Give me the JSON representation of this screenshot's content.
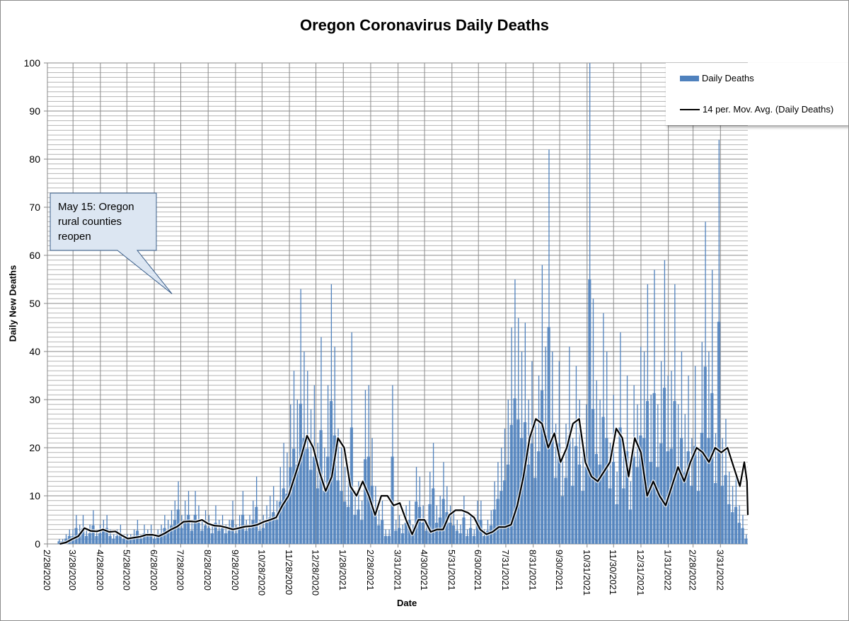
{
  "chart_data": {
    "type": "bar",
    "title": "Oregon Coronavirus Daily Deaths",
    "xlabel": "Date",
    "ylabel": "Daily New Deaths",
    "ylim": [
      0,
      100
    ],
    "yticks": [
      0,
      10,
      20,
      30,
      40,
      50,
      60,
      70,
      80,
      90,
      100
    ],
    "x_start_date": "2/28/2020",
    "x_range_days": [
      0,
      793
    ],
    "xticks": [
      {
        "day": 0,
        "label": "2/28/2020"
      },
      {
        "day": 29,
        "label": "3/28/2020"
      },
      {
        "day": 60,
        "label": "4/28/2020"
      },
      {
        "day": 90,
        "label": "5/28/2020"
      },
      {
        "day": 121,
        "label": "6/28/2020"
      },
      {
        "day": 151,
        "label": "7/28/2020"
      },
      {
        "day": 182,
        "label": "8/28/2020"
      },
      {
        "day": 213,
        "label": "9/28/2020"
      },
      {
        "day": 243,
        "label": "10/28/2020"
      },
      {
        "day": 274,
        "label": "11/28/2020"
      },
      {
        "day": 304,
        "label": "12/28/2020"
      },
      {
        "day": 335,
        "label": "1/28/2021"
      },
      {
        "day": 366,
        "label": "2/28/2021"
      },
      {
        "day": 397,
        "label": "3/31/2021"
      },
      {
        "day": 427,
        "label": "4/30/2021"
      },
      {
        "day": 458,
        "label": "5/31/2021"
      },
      {
        "day": 488,
        "label": "6/30/2021"
      },
      {
        "day": 519,
        "label": "7/31/2021"
      },
      {
        "day": 550,
        "label": "8/31/2021"
      },
      {
        "day": 580,
        "label": "9/30/2021"
      },
      {
        "day": 611,
        "label": "10/31/2021"
      },
      {
        "day": 641,
        "label": "11/30/2021"
      },
      {
        "day": 672,
        "label": "12/31/2021"
      },
      {
        "day": 703,
        "label": "1/31/2022"
      },
      {
        "day": 731,
        "label": "2/28/2022"
      },
      {
        "day": 762,
        "label": "3/31/2022"
      }
    ],
    "grid": {
      "horizontal_minor_every": 1,
      "horizontal_major_every": 10,
      "vertical": "at-ticks"
    },
    "legend_placement": "top-right",
    "bar_bin_days": 3.85,
    "series": [
      {
        "name": "Daily Deaths",
        "kind": "bar",
        "color": "#4f81bd",
        "values": [
          0,
          0,
          0,
          1,
          1,
          2,
          3,
          3,
          6,
          4,
          6,
          3,
          4,
          7,
          3,
          4,
          5,
          6,
          3,
          2,
          3,
          4,
          2,
          2,
          2,
          3,
          5,
          2,
          4,
          3,
          4,
          2,
          3,
          4,
          6,
          5,
          7,
          9,
          13,
          6,
          9,
          11,
          5,
          11,
          8,
          5,
          7,
          6,
          4,
          8,
          5,
          6,
          4,
          5,
          9,
          4,
          6,
          11,
          5,
          6,
          9,
          14,
          5,
          6,
          8,
          10,
          12,
          9,
          16,
          21,
          19,
          29,
          36,
          30,
          53,
          40,
          36,
          28,
          33,
          21,
          43,
          20,
          33,
          54,
          41,
          24,
          20,
          16,
          14,
          44,
          11,
          13,
          9,
          32,
          33,
          22,
          12,
          7,
          9,
          3,
          3,
          33,
          5,
          6,
          4,
          8,
          9,
          4,
          16,
          14,
          8,
          5,
          15,
          21,
          8,
          10,
          17,
          12,
          8,
          7,
          5,
          4,
          10,
          3,
          6,
          3,
          9,
          9,
          3,
          5,
          7,
          13,
          17,
          20,
          24,
          30,
          45,
          55,
          47,
          40,
          46,
          30,
          38,
          25,
          35,
          58,
          41,
          82,
          40,
          25,
          38,
          18,
          25,
          41,
          22,
          37,
          30,
          20,
          29,
          100,
          51,
          34,
          30,
          48,
          40,
          21,
          31,
          15,
          44,
          21,
          35,
          13,
          33,
          29,
          41,
          40,
          54,
          31,
          57,
          29,
          38,
          59,
          35,
          36,
          54,
          29,
          40,
          27,
          35,
          22,
          37,
          20,
          42,
          67,
          40,
          57,
          23,
          84,
          22,
          26,
          15,
          12,
          14,
          8,
          6,
          2
        ]
      },
      {
        "name": "14 per. Mov. Avg. (Daily Deaths)",
        "kind": "line",
        "color": "#000000",
        "points": [
          [
            14,
            0
          ],
          [
            21,
            0.3
          ],
          [
            28,
            1
          ],
          [
            35,
            1.6
          ],
          [
            42,
            3.3
          ],
          [
            49,
            2.7
          ],
          [
            56,
            2.6
          ],
          [
            63,
            3
          ],
          [
            70,
            2.5
          ],
          [
            77,
            2.6
          ],
          [
            84,
            1.8
          ],
          [
            91,
            1.1
          ],
          [
            98,
            1.3
          ],
          [
            105,
            1.5
          ],
          [
            112,
            1.9
          ],
          [
            119,
            1.9
          ],
          [
            126,
            1.6
          ],
          [
            133,
            2.2
          ],
          [
            140,
            3
          ],
          [
            147,
            3.6
          ],
          [
            154,
            4.6
          ],
          [
            161,
            4.7
          ],
          [
            168,
            4.6
          ],
          [
            175,
            5
          ],
          [
            182,
            4.2
          ],
          [
            189,
            3.8
          ],
          [
            196,
            3.7
          ],
          [
            203,
            3.4
          ],
          [
            210,
            3
          ],
          [
            217,
            3.3
          ],
          [
            224,
            3.6
          ],
          [
            231,
            3.7
          ],
          [
            238,
            4
          ],
          [
            245,
            4.6
          ],
          [
            252,
            5
          ],
          [
            259,
            5.5
          ],
          [
            266,
            8
          ],
          [
            273,
            10
          ],
          [
            280,
            14
          ],
          [
            287,
            18
          ],
          [
            294,
            22.5
          ],
          [
            301,
            20
          ],
          [
            308,
            15
          ],
          [
            315,
            11
          ],
          [
            322,
            14
          ],
          [
            329,
            22
          ],
          [
            336,
            20
          ],
          [
            343,
            12
          ],
          [
            350,
            10
          ],
          [
            357,
            13
          ],
          [
            364,
            10
          ],
          [
            371,
            6
          ],
          [
            378,
            10
          ],
          [
            385,
            10
          ],
          [
            392,
            8
          ],
          [
            399,
            8.5
          ],
          [
            406,
            5
          ],
          [
            413,
            2
          ],
          [
            420,
            5
          ],
          [
            427,
            5
          ],
          [
            434,
            2.5
          ],
          [
            441,
            3
          ],
          [
            448,
            3
          ],
          [
            455,
            6
          ],
          [
            462,
            7
          ],
          [
            469,
            7
          ],
          [
            476,
            6.5
          ],
          [
            483,
            5.5
          ],
          [
            490,
            3
          ],
          [
            497,
            2
          ],
          [
            504,
            2.5
          ],
          [
            511,
            3.5
          ],
          [
            518,
            3.5
          ],
          [
            525,
            4
          ],
          [
            532,
            8
          ],
          [
            539,
            14
          ],
          [
            546,
            22
          ],
          [
            553,
            26
          ],
          [
            560,
            25
          ],
          [
            567,
            20
          ],
          [
            574,
            23
          ],
          [
            581,
            17
          ],
          [
            588,
            20
          ],
          [
            595,
            25
          ],
          [
            602,
            26
          ],
          [
            609,
            17
          ],
          [
            616,
            14
          ],
          [
            623,
            13
          ],
          [
            630,
            15
          ],
          [
            637,
            17
          ],
          [
            644,
            24
          ],
          [
            651,
            22
          ],
          [
            658,
            14
          ],
          [
            665,
            22
          ],
          [
            672,
            19
          ],
          [
            679,
            10
          ],
          [
            686,
            13
          ],
          [
            693,
            10
          ],
          [
            700,
            8
          ],
          [
            707,
            12
          ],
          [
            714,
            16
          ],
          [
            721,
            13
          ],
          [
            728,
            17
          ],
          [
            735,
            20
          ],
          [
            742,
            19
          ],
          [
            749,
            17
          ],
          [
            756,
            20
          ],
          [
            763,
            19
          ],
          [
            770,
            20
          ],
          [
            777,
            16
          ],
          [
            784,
            12
          ],
          [
            789,
            17
          ],
          [
            792,
            13
          ],
          [
            793,
            6
          ]
        ]
      }
    ],
    "annotations": [
      {
        "text": "May 15: Oregon rural counties reopen",
        "points_to_date": "5/15/2020",
        "points_to_day": 77,
        "points_to_value": 52
      }
    ],
    "legend": {
      "bar_label": "Daily Deaths",
      "line_label": "14 per. Mov. Avg. (Daily Deaths)"
    }
  }
}
